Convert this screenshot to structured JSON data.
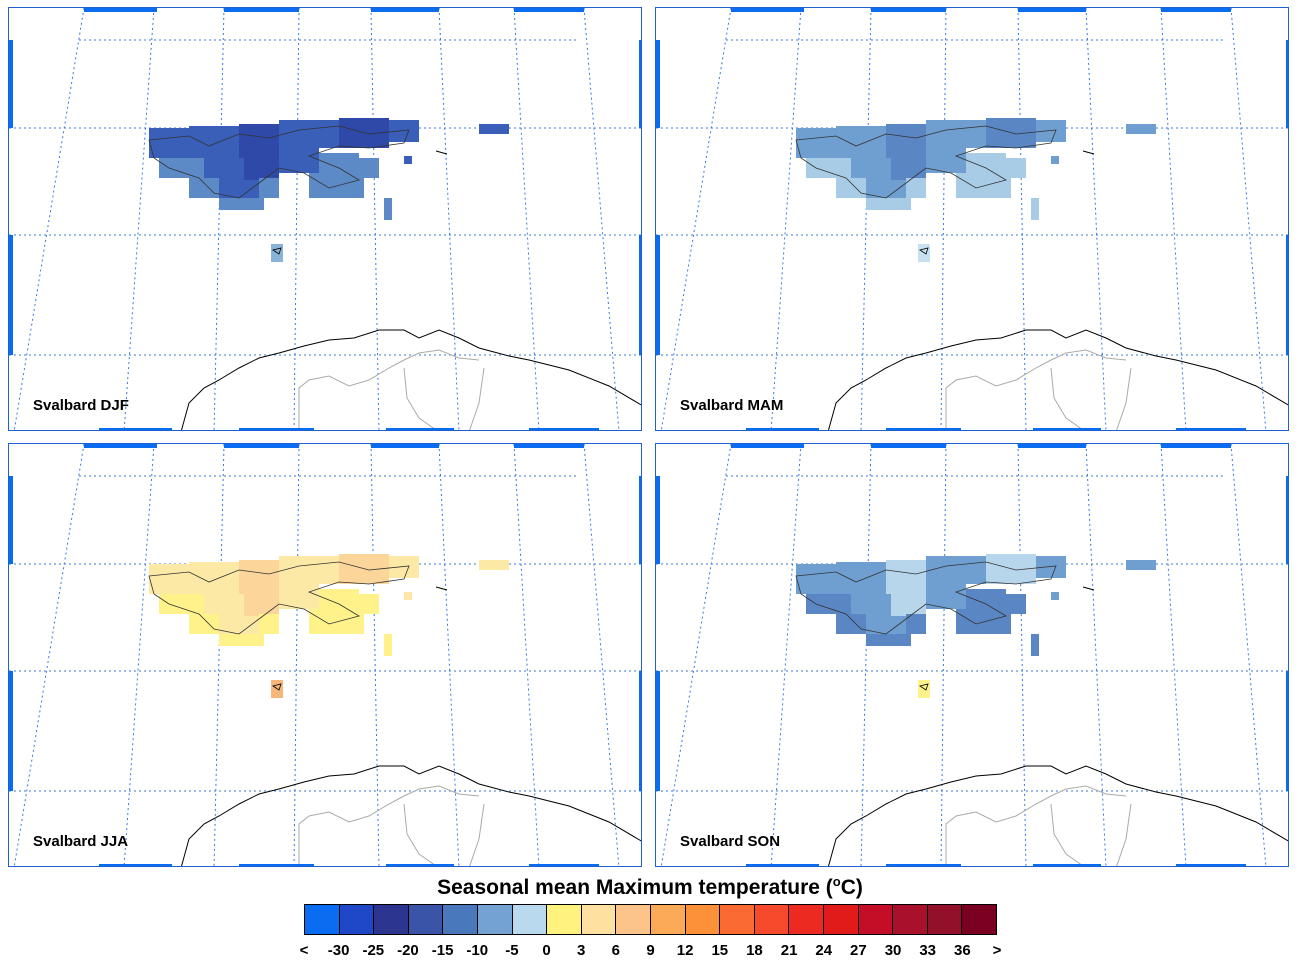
{
  "panels": [
    {
      "label": "Svalbard DJF",
      "season": "DJF",
      "colors": [
        "#3a5fb8",
        "#2f49a8",
        "#5c8ac6",
        "#89b3d9"
      ]
    },
    {
      "label": "Svalbard MAM",
      "season": "MAM",
      "colors": [
        "#6f9fd0",
        "#5a86c4",
        "#a9cce6",
        "#c7e1f0"
      ]
    },
    {
      "label": "Svalbard JJA",
      "season": "JJA",
      "colors": [
        "#fde9a6",
        "#fbd59a",
        "#fff28a",
        "#f7b77a"
      ]
    },
    {
      "label": "Svalbard SON",
      "season": "SON",
      "colors": [
        "#6f9fd0",
        "#b7d6ec",
        "#5a86c4",
        "#fff28a"
      ]
    }
  ],
  "legend": {
    "title": "Seasonal mean Maximum temperature (",
    "unit_super": "o",
    "unit_suffix": "C)",
    "colors": [
      "#0a6cf0",
      "#1e48c8",
      "#2c3590",
      "#3a55a8",
      "#4a78bd",
      "#74a3d3",
      "#b8d9ee",
      "#fff27e",
      "#fee0a0",
      "#fdc489",
      "#fcaa58",
      "#fc9139",
      "#fb6a33",
      "#f74a2c",
      "#ec2a22",
      "#e11a1a",
      "#c40e28",
      "#a8102c",
      "#92102a",
      "#7a0022"
    ],
    "tick_labels": [
      "<",
      "-30",
      "-25",
      "-20",
      "-15",
      "-10",
      "-5",
      "0",
      "3",
      "6",
      "9",
      "12",
      "15",
      "18",
      "21",
      "24",
      "27",
      "30",
      "33",
      "36",
      ">"
    ]
  }
}
